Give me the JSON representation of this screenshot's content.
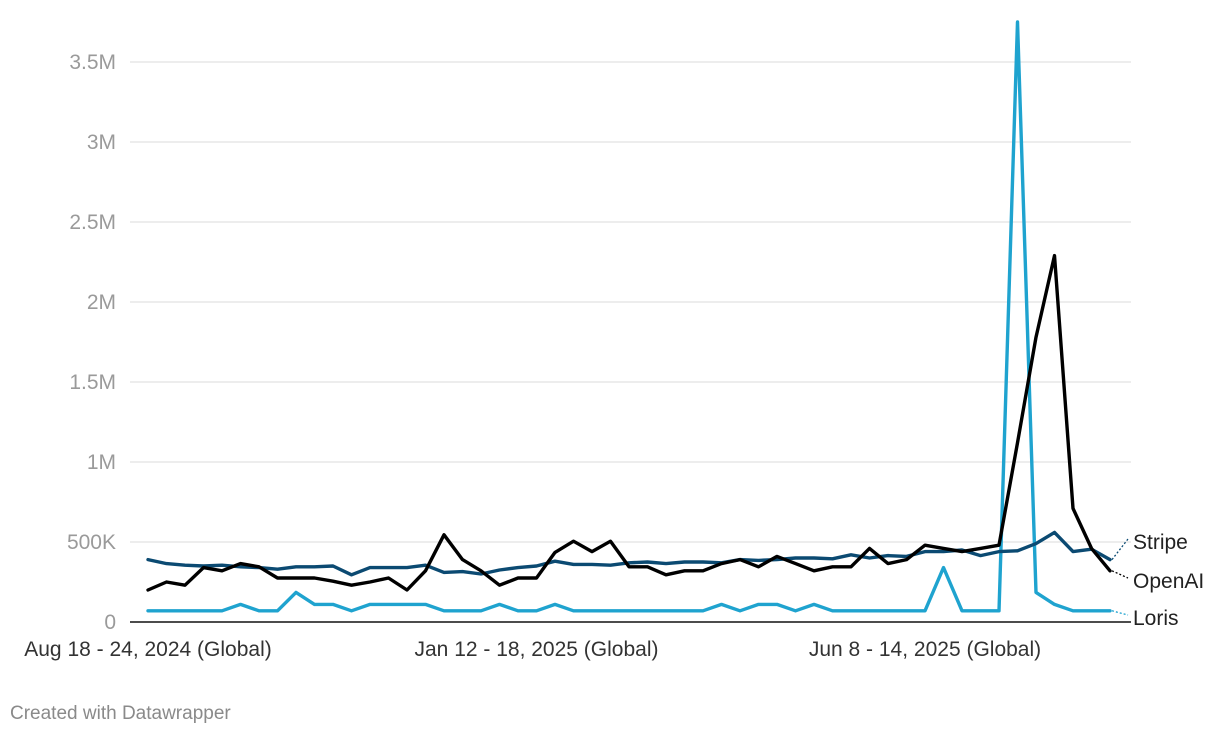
{
  "chart_data": {
    "type": "line",
    "title": "",
    "xlabel": "",
    "ylabel": "",
    "ylim": [
      0,
      3750000
    ],
    "y_ticks": [
      0,
      500000,
      1000000,
      1500000,
      2000000,
      2500000,
      3000000,
      3500000
    ],
    "y_tick_labels": [
      "0",
      "500K",
      "1M",
      "1.5M",
      "2M",
      "2.5M",
      "3M",
      "3.5M"
    ],
    "x_tick_labels": [
      {
        "index": 0,
        "label": "Aug 18 - 24, 2024 (Global)"
      },
      {
        "index": 21,
        "label": "Jan 12 - 18, 2025 (Global)"
      },
      {
        "index": 42,
        "label": "Jun 8 - 14, 2025 (Global)"
      }
    ],
    "grid": true,
    "legend": "direct labels at line ends",
    "series": [
      {
        "name": "Stripe",
        "color": "#0b4a72",
        "values": [
          390000,
          365000,
          355000,
          350000,
          355000,
          345000,
          340000,
          330000,
          345000,
          345000,
          350000,
          295000,
          340000,
          340000,
          340000,
          355000,
          310000,
          315000,
          300000,
          325000,
          340000,
          350000,
          380000,
          360000,
          360000,
          355000,
          370000,
          375000,
          365000,
          375000,
          375000,
          370000,
          390000,
          385000,
          390000,
          400000,
          400000,
          395000,
          420000,
          400000,
          415000,
          410000,
          440000,
          440000,
          450000,
          415000,
          440000,
          445000,
          490000,
          560000,
          440000,
          455000,
          390000
        ]
      },
      {
        "name": "OpenAI",
        "color": "#000000",
        "values": [
          200000,
          250000,
          230000,
          340000,
          320000,
          365000,
          345000,
          275000,
          275000,
          275000,
          255000,
          230000,
          250000,
          275000,
          200000,
          320000,
          545000,
          390000,
          320000,
          230000,
          275000,
          275000,
          435000,
          505000,
          440000,
          505000,
          345000,
          345000,
          295000,
          320000,
          320000,
          365000,
          390000,
          345000,
          410000,
          365000,
          320000,
          345000,
          345000,
          460000,
          365000,
          390000,
          480000,
          460000,
          440000,
          460000,
          480000,
          1120000,
          1780000,
          2290000,
          710000,
          460000,
          320000
        ]
      },
      {
        "name": "Loris",
        "color": "#1fa3cf",
        "values": [
          70000,
          70000,
          70000,
          70000,
          70000,
          110000,
          70000,
          70000,
          185000,
          110000,
          110000,
          70000,
          110000,
          110000,
          110000,
          110000,
          70000,
          70000,
          70000,
          110000,
          70000,
          70000,
          110000,
          70000,
          70000,
          70000,
          70000,
          70000,
          70000,
          70000,
          70000,
          110000,
          70000,
          110000,
          110000,
          70000,
          110000,
          70000,
          70000,
          70000,
          70000,
          70000,
          70000,
          340000,
          70000,
          70000,
          70000,
          3750000,
          185000,
          110000,
          70000,
          70000,
          70000
        ]
      }
    ]
  },
  "footer": {
    "credit": "Created with Datawrapper"
  }
}
